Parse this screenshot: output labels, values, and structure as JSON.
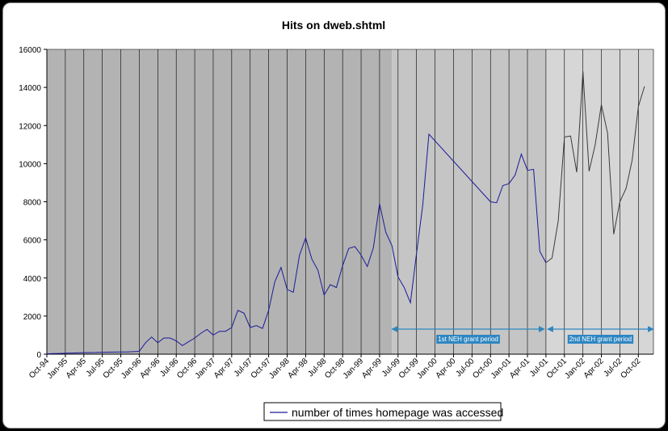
{
  "chart_data": {
    "type": "line",
    "title": "Hits on dweb.shtml",
    "xlabel": "",
    "ylabel": "",
    "ylim": [
      0,
      16000
    ],
    "yticks": [
      0,
      2000,
      4000,
      6000,
      8000,
      10000,
      12000,
      14000,
      16000
    ],
    "grid": true,
    "legend_position": "bottom-center",
    "colors": {
      "line1": "#1a1a9a",
      "line2": "#3a3a3a",
      "bg1": "#b3b3b3",
      "bg2": "#c5c5c5",
      "bg3": "#d6d6d6",
      "arrow": "#2e86c1"
    },
    "xtick_labels": [
      "Oct-94",
      "Jan-95",
      "Apr-95",
      "Jul-95",
      "Oct-95",
      "Jan-96",
      "Apr-96",
      "Jul-96",
      "Oct-96",
      "Jan-97",
      "Apr-97",
      "Jul-97",
      "Oct-97",
      "Jan-98",
      "Apr-98",
      "Jul-98",
      "Oct-98",
      "Jan-99",
      "Apr-99",
      "Jul-99",
      "Oct-99",
      "Jan-00",
      "Apr-00",
      "Jul-00",
      "Oct-00",
      "Jan-01",
      "Apr-01",
      "Jul-01",
      "Oct-01",
      "Jan-02",
      "Apr-02",
      "Jul-02",
      "Oct-02"
    ],
    "series": [
      {
        "name": "number of times homepage was accessed",
        "points": [
          [
            "Oct-94",
            20
          ],
          [
            "Nov-94",
            30
          ],
          [
            "Dec-94",
            40
          ],
          [
            "Jan-95",
            50
          ],
          [
            "Feb-95",
            60
          ],
          [
            "Mar-95",
            70
          ],
          [
            "Apr-95",
            80
          ],
          [
            "May-95",
            85
          ],
          [
            "Jun-95",
            90
          ],
          [
            "Jul-95",
            100
          ],
          [
            "Aug-95",
            105
          ],
          [
            "Sep-95",
            110
          ],
          [
            "Oct-95",
            115
          ],
          [
            "Nov-95",
            120
          ],
          [
            "Dec-95",
            130
          ],
          [
            "Jan-96",
            150
          ],
          [
            "Feb-96",
            600
          ],
          [
            "Mar-96",
            900
          ],
          [
            "Apr-96",
            600
          ],
          [
            "May-96",
            850
          ],
          [
            "Jun-96",
            850
          ],
          [
            "Jul-96",
            700
          ],
          [
            "Aug-96",
            450
          ],
          [
            "Sep-96",
            650
          ],
          [
            "Oct-96",
            850
          ],
          [
            "Nov-96",
            1100
          ],
          [
            "Dec-96",
            1300
          ],
          [
            "Jan-97",
            1000
          ],
          [
            "Feb-97",
            1200
          ],
          [
            "Mar-97",
            1200
          ],
          [
            "Apr-97",
            1400
          ],
          [
            "May-97",
            2300
          ],
          [
            "Jun-97",
            2150
          ],
          [
            "Jul-97",
            1400
          ],
          [
            "Aug-97",
            1500
          ],
          [
            "Sep-97",
            1350
          ],
          [
            "Oct-97",
            2300
          ],
          [
            "Nov-97",
            3800
          ],
          [
            "Dec-97",
            4550
          ],
          [
            "Jan-98",
            3400
          ],
          [
            "Feb-98",
            3250
          ],
          [
            "Mar-98",
            5200
          ],
          [
            "Apr-98",
            6100
          ],
          [
            "May-98",
            5000
          ],
          [
            "Jun-98",
            4400
          ],
          [
            "Jul-98",
            3100
          ],
          [
            "Aug-98",
            3650
          ],
          [
            "Sep-98",
            3500
          ],
          [
            "Oct-98",
            4650
          ],
          [
            "Nov-98",
            5550
          ],
          [
            "Dec-98",
            5650
          ],
          [
            "Jan-99",
            5200
          ],
          [
            "Feb-99",
            4600
          ],
          [
            "Mar-99",
            5600
          ],
          [
            "Apr-99",
            7900
          ],
          [
            "May-99",
            6400
          ],
          [
            "Jun-99",
            5700
          ],
          [
            "Jul-99",
            4050
          ],
          [
            "Aug-99",
            3500
          ],
          [
            "Sep-99",
            2700
          ],
          [
            "Oct-99",
            5300
          ],
          [
            "Nov-99",
            7800
          ],
          [
            "Dec-99",
            11550
          ],
          [
            "Oct-00",
            8000
          ],
          [
            "Nov-00",
            7950
          ],
          [
            "Dec-00",
            8850
          ],
          [
            "Jan-01",
            8950
          ],
          [
            "Feb-01",
            9400
          ],
          [
            "Mar-01",
            10500
          ],
          [
            "Apr-01",
            9650
          ],
          [
            "May-01",
            9700
          ],
          [
            "Jun-01",
            5400
          ],
          [
            "Jul-01",
            4800
          ]
        ]
      },
      {
        "name": "",
        "points": [
          [
            "Jul-01",
            4800
          ],
          [
            "Aug-01",
            5050
          ],
          [
            "Sep-01",
            7000
          ],
          [
            "Oct-01",
            11400
          ],
          [
            "Nov-01",
            11450
          ],
          [
            "Dec-01",
            9550
          ],
          [
            "Jan-02",
            14850
          ],
          [
            "Feb-02",
            9600
          ],
          [
            "Mar-02",
            11000
          ],
          [
            "Apr-02",
            13100
          ],
          [
            "May-02",
            11600
          ],
          [
            "Jun-02",
            6300
          ],
          [
            "Jul-02",
            8000
          ],
          [
            "Aug-02",
            8700
          ],
          [
            "Sep-02",
            10200
          ],
          [
            "Oct-02",
            13000
          ],
          [
            "Nov-02",
            14050
          ]
        ]
      }
    ],
    "regions": [
      {
        "from": "Oct-94",
        "to": "Jun-99"
      },
      {
        "from": "Jun-99",
        "to": "Jul-01"
      },
      {
        "from": "Jul-01",
        "to": "Dec-02"
      }
    ],
    "annotations": [
      {
        "label": "1st NEH grant period",
        "from": "Jun-99",
        "to": "Jul-01"
      },
      {
        "label": "2nd NEH grant period",
        "from": "Jul-01",
        "to": "Dec-02"
      }
    ]
  }
}
